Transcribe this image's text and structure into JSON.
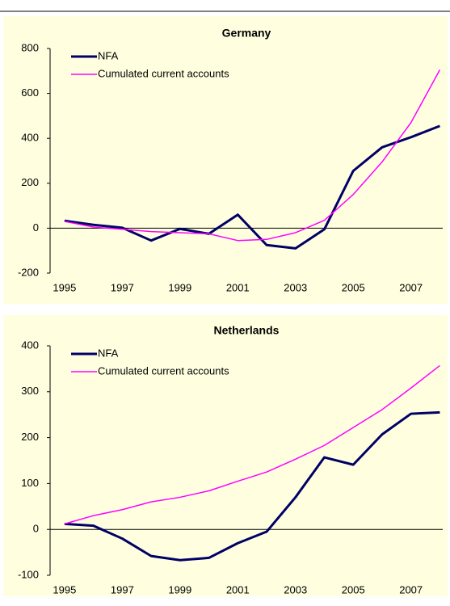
{
  "chart_data": [
    {
      "type": "line",
      "title": "Germany",
      "x": [
        1995,
        1996,
        1997,
        1998,
        1999,
        2000,
        2001,
        2002,
        2003,
        2004,
        2005,
        2006,
        2007,
        2008
      ],
      "series": [
        {
          "name": "NFA",
          "color": "#000066",
          "values": [
            33,
            15,
            2,
            -55,
            -3,
            -25,
            60,
            -75,
            -90,
            -5,
            255,
            360,
            405,
            455
          ]
        },
        {
          "name": "Cumulated current accounts",
          "color": "#ff00ff",
          "values": [
            30,
            5,
            -5,
            -15,
            -20,
            -25,
            -55,
            -50,
            -20,
            35,
            150,
            295,
            470,
            705
          ]
        }
      ],
      "xlim": [
        1994.5,
        2008.1
      ],
      "xticks": [
        1995,
        1997,
        1999,
        2001,
        2003,
        2005,
        2007
      ],
      "ylim": [
        -200,
        800
      ],
      "yticks": [
        -200,
        0,
        200,
        400,
        600,
        800
      ]
    },
    {
      "type": "line",
      "title": "Netherlands",
      "x": [
        1995,
        1996,
        1997,
        1998,
        1999,
        2000,
        2001,
        2002,
        2003,
        2004,
        2005,
        2006,
        2007,
        2008
      ],
      "series": [
        {
          "name": "NFA",
          "color": "#000066",
          "values": [
            12,
            8,
            -20,
            -58,
            -67,
            -62,
            -30,
            -5,
            70,
            157,
            141,
            207,
            252,
            255
          ]
        },
        {
          "name": "Cumulated current accounts",
          "color": "#ff00ff",
          "values": [
            12,
            30,
            43,
            60,
            70,
            84,
            105,
            125,
            153,
            183,
            222,
            261,
            308,
            357
          ]
        }
      ],
      "xlim": [
        1994.5,
        2008.1
      ],
      "xticks": [
        1995,
        1997,
        1999,
        2001,
        2003,
        2005,
        2007
      ],
      "ylim": [
        -100,
        400
      ],
      "yticks": [
        -100,
        0,
        100,
        200,
        300,
        400
      ]
    }
  ]
}
